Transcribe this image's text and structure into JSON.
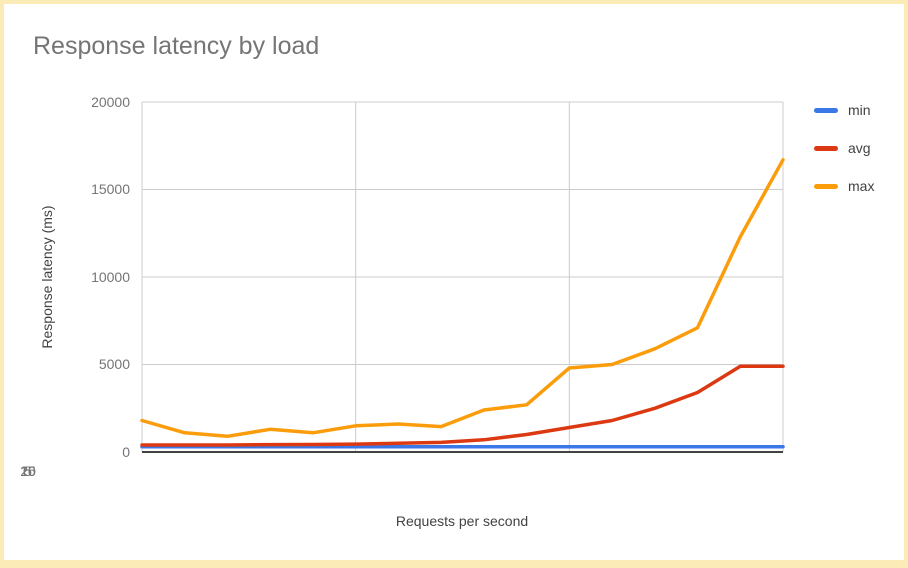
{
  "frame": {
    "border_color": "#FAEBB7",
    "card_background": "#FFFFFF"
  },
  "chart_data": {
    "type": "line",
    "title": "Response latency by load",
    "xlabel": "Requests per second",
    "ylabel": "Response latency (ms)",
    "x": [
      5,
      6,
      7,
      8,
      9,
      10,
      11,
      12,
      13,
      14,
      15,
      16,
      17,
      18,
      19,
      20
    ],
    "series": [
      {
        "name": "min",
        "color": "#3B78E7",
        "values": [
          300,
          300,
          300,
          300,
          300,
          300,
          300,
          300,
          300,
          300,
          300,
          300,
          300,
          300,
          300,
          300
        ]
      },
      {
        "name": "avg",
        "color": "#DC3912",
        "values": [
          400,
          400,
          400,
          420,
          430,
          450,
          500,
          550,
          700,
          1000,
          1400,
          1800,
          2500,
          3400,
          4900,
          4900
        ]
      },
      {
        "name": "max",
        "color": "#FB9D0B",
        "values": [
          1800,
          1100,
          900,
          1300,
          1100,
          1500,
          1600,
          1450,
          2400,
          2700,
          4800,
          5000,
          5900,
          7100,
          12300,
          16700
        ]
      }
    ],
    "xlim": [
      5,
      20
    ],
    "ylim": [
      0,
      20000
    ],
    "xticks": [
      5,
      10,
      15,
      20
    ],
    "yticks": [
      0,
      5000,
      10000,
      15000,
      20000
    ],
    "grid": true,
    "legend_position": "right",
    "grid_color": "#CCCCCC",
    "axis_line_color": "#424242",
    "title_color": "#757575",
    "tick_label_color": "#757575",
    "axis_title_color": "#424242"
  }
}
